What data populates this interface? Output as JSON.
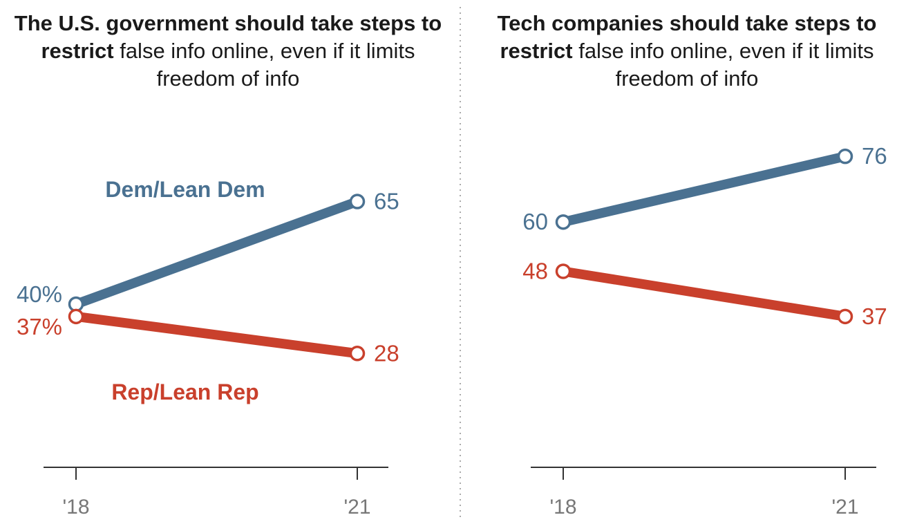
{
  "colors": {
    "dem": "#4a7191",
    "rep": "#c9402c",
    "axis": "#333333",
    "tick_text": "#777777",
    "divider": "#aaaaaa"
  },
  "chart_data": [
    {
      "type": "line",
      "title_bold": "The U.S. government should take steps to restrict",
      "title_rest": "false info online, even if it limits freedom of info",
      "categories": [
        "'18",
        "'21"
      ],
      "ylim": [
        0,
        100
      ],
      "series": [
        {
          "name": "Dem/Lean Dem",
          "key": "dem",
          "values": [
            40,
            65
          ],
          "labels": [
            "40%",
            "65"
          ]
        },
        {
          "name": "Rep/Lean Rep",
          "key": "rep",
          "values": [
            37,
            28
          ],
          "labels": [
            "37%",
            "28"
          ]
        }
      ]
    },
    {
      "type": "line",
      "title_bold": "Tech companies should take steps to restrict",
      "title_rest": "false info online, even if it limits freedom of info",
      "categories": [
        "'18",
        "'21"
      ],
      "ylim": [
        0,
        100
      ],
      "series": [
        {
          "key": "dem",
          "values": [
            60,
            76
          ],
          "labels": [
            "60",
            "76"
          ]
        },
        {
          "key": "rep",
          "values": [
            48,
            37
          ],
          "labels": [
            "48",
            "37"
          ]
        }
      ]
    }
  ]
}
